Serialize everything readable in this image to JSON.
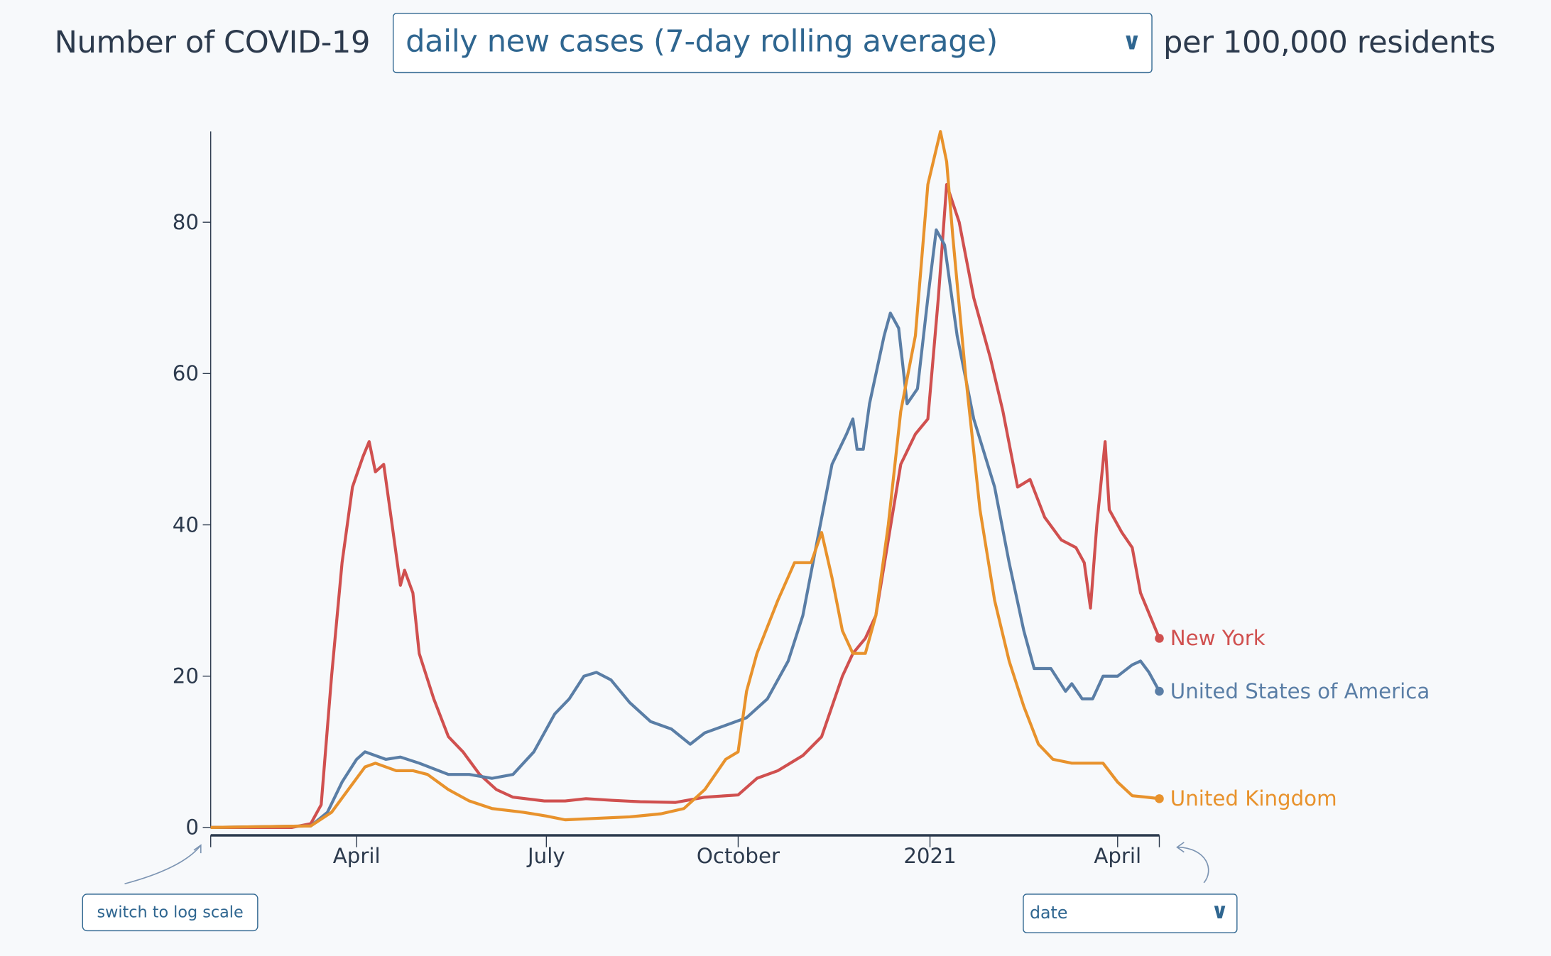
{
  "header": {
    "prefix": "Number of COVID-19",
    "metric_selected": "daily new cases (7-day rolling average)",
    "suffix": "per 100,000 residents"
  },
  "controls": {
    "log_scale_button": "switch to log scale",
    "x_axis_select": "date"
  },
  "chart_data": {
    "type": "line",
    "title": "",
    "xlabel": "",
    "ylabel": "",
    "xlim": [
      "2020-01-22",
      "2021-04-21"
    ],
    "ylim": [
      0,
      92
    ],
    "grid": false,
    "legend": "end-of-line labels",
    "x_ticks": [
      {
        "date": "2020-04-01",
        "label": "April"
      },
      {
        "date": "2020-07-01",
        "label": "July"
      },
      {
        "date": "2020-10-01",
        "label": "October"
      },
      {
        "date": "2021-01-01",
        "label": "2021"
      },
      {
        "date": "2021-04-01",
        "label": "April"
      }
    ],
    "y_ticks": [
      0,
      20,
      40,
      60,
      80
    ],
    "series": [
      {
        "name": "New York",
        "color": "#d0504f",
        "points": [
          [
            "2020-01-22",
            0
          ],
          [
            "2020-03-01",
            0
          ],
          [
            "2020-03-10",
            0.5
          ],
          [
            "2020-03-15",
            3
          ],
          [
            "2020-03-20",
            20
          ],
          [
            "2020-03-25",
            35
          ],
          [
            "2020-03-30",
            45
          ],
          [
            "2020-04-04",
            49
          ],
          [
            "2020-04-07",
            51
          ],
          [
            "2020-04-10",
            47
          ],
          [
            "2020-04-14",
            48
          ],
          [
            "2020-04-18",
            40
          ],
          [
            "2020-04-22",
            32
          ],
          [
            "2020-04-24",
            34
          ],
          [
            "2020-04-28",
            31
          ],
          [
            "2020-05-01",
            23
          ],
          [
            "2020-05-08",
            17
          ],
          [
            "2020-05-15",
            12
          ],
          [
            "2020-05-22",
            10
          ],
          [
            "2020-05-30",
            7
          ],
          [
            "2020-06-07",
            5
          ],
          [
            "2020-06-15",
            4
          ],
          [
            "2020-06-30",
            3.5
          ],
          [
            "2020-07-10",
            3.5
          ],
          [
            "2020-07-20",
            3.8
          ],
          [
            "2020-08-01",
            3.6
          ],
          [
            "2020-08-15",
            3.4
          ],
          [
            "2020-09-01",
            3.3
          ],
          [
            "2020-09-15",
            4
          ],
          [
            "2020-10-01",
            4.3
          ],
          [
            "2020-10-10",
            6.5
          ],
          [
            "2020-10-20",
            7.5
          ],
          [
            "2020-11-01",
            9.5
          ],
          [
            "2020-11-10",
            12
          ],
          [
            "2020-11-20",
            20
          ],
          [
            "2020-11-25",
            23
          ],
          [
            "2020-12-01",
            25
          ],
          [
            "2020-12-06",
            28
          ],
          [
            "2020-12-12",
            38
          ],
          [
            "2020-12-18",
            48
          ],
          [
            "2020-12-25",
            52
          ],
          [
            "2020-12-31",
            54
          ],
          [
            "2021-01-05",
            70
          ],
          [
            "2021-01-09",
            85
          ],
          [
            "2021-01-15",
            80
          ],
          [
            "2021-01-22",
            70
          ],
          [
            "2021-01-30",
            62
          ],
          [
            "2021-02-05",
            55
          ],
          [
            "2021-02-12",
            45
          ],
          [
            "2021-02-18",
            46
          ],
          [
            "2021-02-25",
            41
          ],
          [
            "2021-03-05",
            38
          ],
          [
            "2021-03-12",
            37
          ],
          [
            "2021-03-16",
            35
          ],
          [
            "2021-03-19",
            29
          ],
          [
            "2021-03-22",
            40
          ],
          [
            "2021-03-26",
            51
          ],
          [
            "2021-03-28",
            42
          ],
          [
            "2021-04-03",
            39
          ],
          [
            "2021-04-08",
            37
          ],
          [
            "2021-04-12",
            31
          ],
          [
            "2021-04-21",
            25
          ]
        ]
      },
      {
        "name": "United States of America",
        "color": "#5a7ea6",
        "points": [
          [
            "2020-01-22",
            0
          ],
          [
            "2020-03-10",
            0.2
          ],
          [
            "2020-03-18",
            2
          ],
          [
            "2020-03-25",
            6
          ],
          [
            "2020-04-01",
            9
          ],
          [
            "2020-04-05",
            10
          ],
          [
            "2020-04-15",
            9
          ],
          [
            "2020-04-22",
            9.3
          ],
          [
            "2020-05-01",
            8.5
          ],
          [
            "2020-05-15",
            7
          ],
          [
            "2020-05-25",
            7
          ],
          [
            "2020-06-05",
            6.5
          ],
          [
            "2020-06-15",
            7
          ],
          [
            "2020-06-25",
            10
          ],
          [
            "2020-07-05",
            15
          ],
          [
            "2020-07-12",
            17
          ],
          [
            "2020-07-19",
            20
          ],
          [
            "2020-07-25",
            20.5
          ],
          [
            "2020-08-01",
            19.5
          ],
          [
            "2020-08-10",
            16.5
          ],
          [
            "2020-08-20",
            14
          ],
          [
            "2020-08-30",
            13
          ],
          [
            "2020-09-08",
            11
          ],
          [
            "2020-09-15",
            12.5
          ],
          [
            "2020-09-25",
            13.5
          ],
          [
            "2020-10-05",
            14.5
          ],
          [
            "2020-10-15",
            17
          ],
          [
            "2020-10-25",
            22
          ],
          [
            "2020-11-01",
            28
          ],
          [
            "2020-11-08",
            38
          ],
          [
            "2020-11-15",
            48
          ],
          [
            "2020-11-22",
            52
          ],
          [
            "2020-11-25",
            54
          ],
          [
            "2020-11-27",
            50
          ],
          [
            "2020-11-30",
            50
          ],
          [
            "2020-12-03",
            56
          ],
          [
            "2020-12-10",
            65
          ],
          [
            "2020-12-13",
            68
          ],
          [
            "2020-12-17",
            66
          ],
          [
            "2020-12-21",
            56
          ],
          [
            "2020-12-26",
            58
          ],
          [
            "2020-12-31",
            70
          ],
          [
            "2021-01-04",
            79
          ],
          [
            "2021-01-08",
            77
          ],
          [
            "2021-01-14",
            65
          ],
          [
            "2021-01-22",
            54
          ],
          [
            "2021-02-01",
            45
          ],
          [
            "2021-02-08",
            35
          ],
          [
            "2021-02-15",
            26
          ],
          [
            "2021-02-20",
            21
          ],
          [
            "2021-02-28",
            21
          ],
          [
            "2021-03-07",
            18
          ],
          [
            "2021-03-10",
            19
          ],
          [
            "2021-03-15",
            17
          ],
          [
            "2021-03-20",
            17
          ],
          [
            "2021-03-25",
            20
          ],
          [
            "2021-04-01",
            20
          ],
          [
            "2021-04-08",
            21.5
          ],
          [
            "2021-04-12",
            22
          ],
          [
            "2021-04-16",
            20.5
          ],
          [
            "2021-04-21",
            18
          ]
        ]
      },
      {
        "name": "United Kingdom",
        "color": "#e8922c",
        "points": [
          [
            "2020-01-22",
            0
          ],
          [
            "2020-03-10",
            0.2
          ],
          [
            "2020-03-20",
            2
          ],
          [
            "2020-03-28",
            5
          ],
          [
            "2020-04-05",
            8
          ],
          [
            "2020-04-10",
            8.5
          ],
          [
            "2020-04-20",
            7.5
          ],
          [
            "2020-04-28",
            7.5
          ],
          [
            "2020-05-05",
            7
          ],
          [
            "2020-05-15",
            5
          ],
          [
            "2020-05-25",
            3.5
          ],
          [
            "2020-06-05",
            2.5
          ],
          [
            "2020-06-20",
            2
          ],
          [
            "2020-07-01",
            1.5
          ],
          [
            "2020-07-10",
            1
          ],
          [
            "2020-07-25",
            1.2
          ],
          [
            "2020-08-10",
            1.4
          ],
          [
            "2020-08-25",
            1.8
          ],
          [
            "2020-09-05",
            2.5
          ],
          [
            "2020-09-15",
            5
          ],
          [
            "2020-09-25",
            9
          ],
          [
            "2020-10-01",
            10
          ],
          [
            "2020-10-05",
            18
          ],
          [
            "2020-10-10",
            23
          ],
          [
            "2020-10-20",
            30
          ],
          [
            "2020-10-28",
            35
          ],
          [
            "2020-11-05",
            35
          ],
          [
            "2020-11-10",
            39
          ],
          [
            "2020-11-15",
            33
          ],
          [
            "2020-11-20",
            26
          ],
          [
            "2020-11-25",
            23
          ],
          [
            "2020-12-01",
            23
          ],
          [
            "2020-12-06",
            28
          ],
          [
            "2020-12-12",
            40
          ],
          [
            "2020-12-18",
            55
          ],
          [
            "2020-12-25",
            65
          ],
          [
            "2020-12-31",
            85
          ],
          [
            "2021-01-06",
            92
          ],
          [
            "2021-01-09",
            88
          ],
          [
            "2021-01-12",
            78
          ],
          [
            "2021-01-18",
            60
          ],
          [
            "2021-01-25",
            42
          ],
          [
            "2021-02-01",
            30
          ],
          [
            "2021-02-08",
            22
          ],
          [
            "2021-02-15",
            16
          ],
          [
            "2021-02-22",
            11
          ],
          [
            "2021-03-01",
            9
          ],
          [
            "2021-03-10",
            8.5
          ],
          [
            "2021-03-20",
            8.5
          ],
          [
            "2021-03-25",
            8.5
          ],
          [
            "2021-04-01",
            6
          ],
          [
            "2021-04-08",
            4.2
          ],
          [
            "2021-04-15",
            4
          ],
          [
            "2021-04-21",
            3.8
          ]
        ]
      }
    ]
  }
}
